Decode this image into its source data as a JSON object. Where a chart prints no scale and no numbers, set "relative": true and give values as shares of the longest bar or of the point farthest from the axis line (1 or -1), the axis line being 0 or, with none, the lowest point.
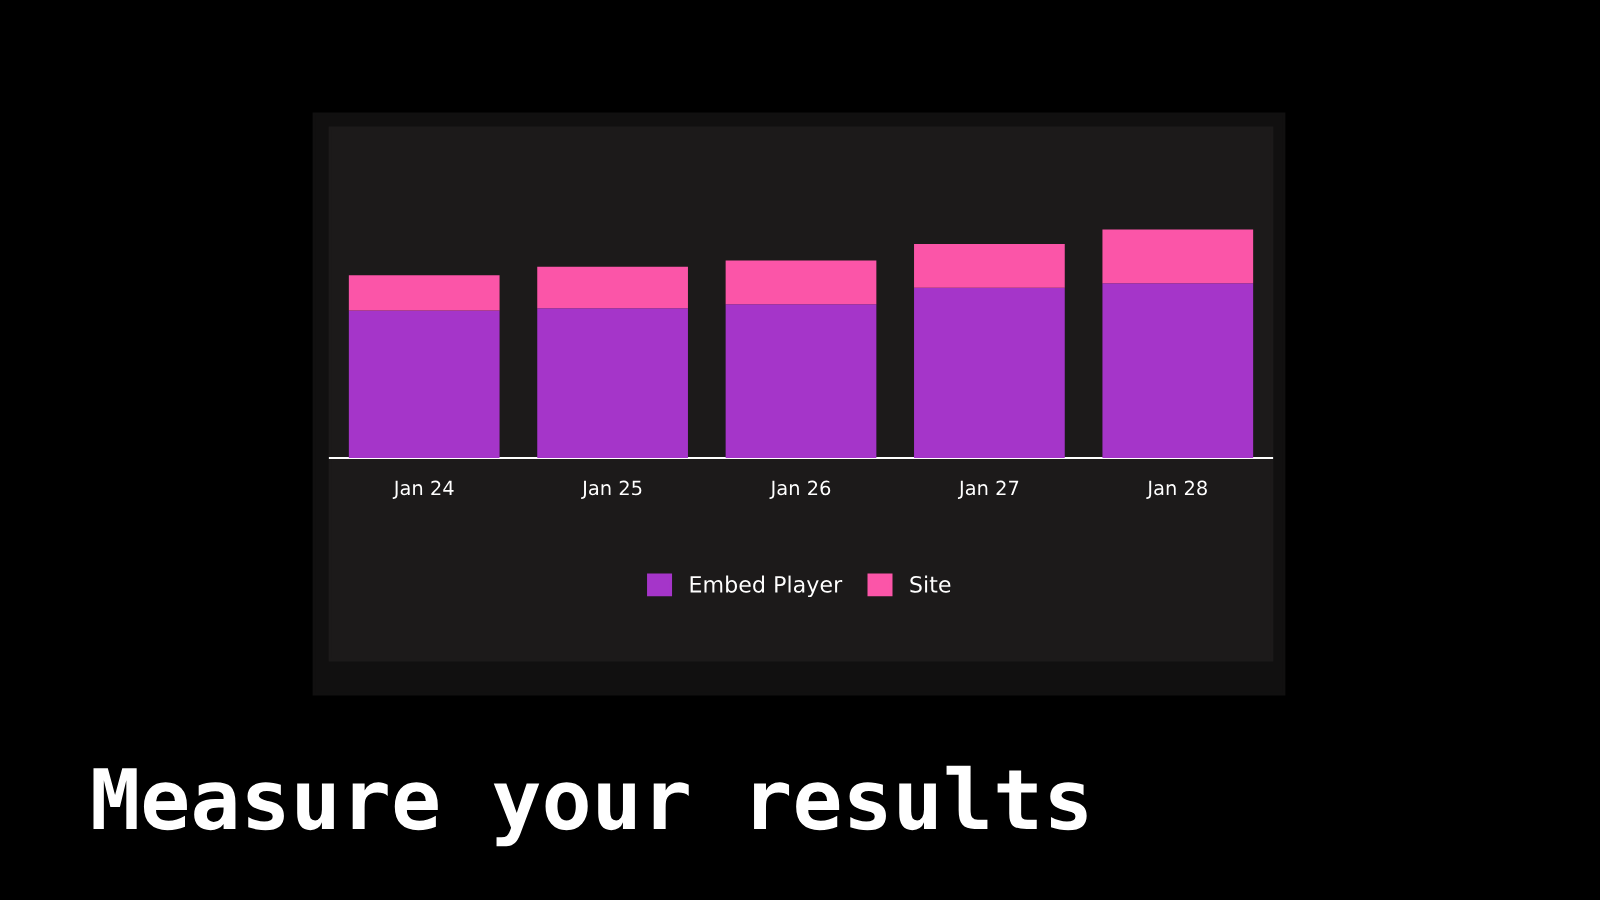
{
  "chart_data": {
    "type": "bar",
    "title": "Measure your results",
    "stacked": true,
    "relative": true,
    "categories": [
      "Jan 24",
      "Jan 25",
      "Jan 26",
      "Jan 27",
      "Jan 28"
    ],
    "series": [
      {
        "name": "Embed Player",
        "color": "#a535c9",
        "values": [
          0.645,
          0.655,
          0.673,
          0.745,
          0.764
        ]
      },
      {
        "name": "Site",
        "color": "#fb55a8",
        "values": [
          0.155,
          0.182,
          0.191,
          0.191,
          0.236
        ]
      }
    ],
    "legend": "bottom"
  }
}
